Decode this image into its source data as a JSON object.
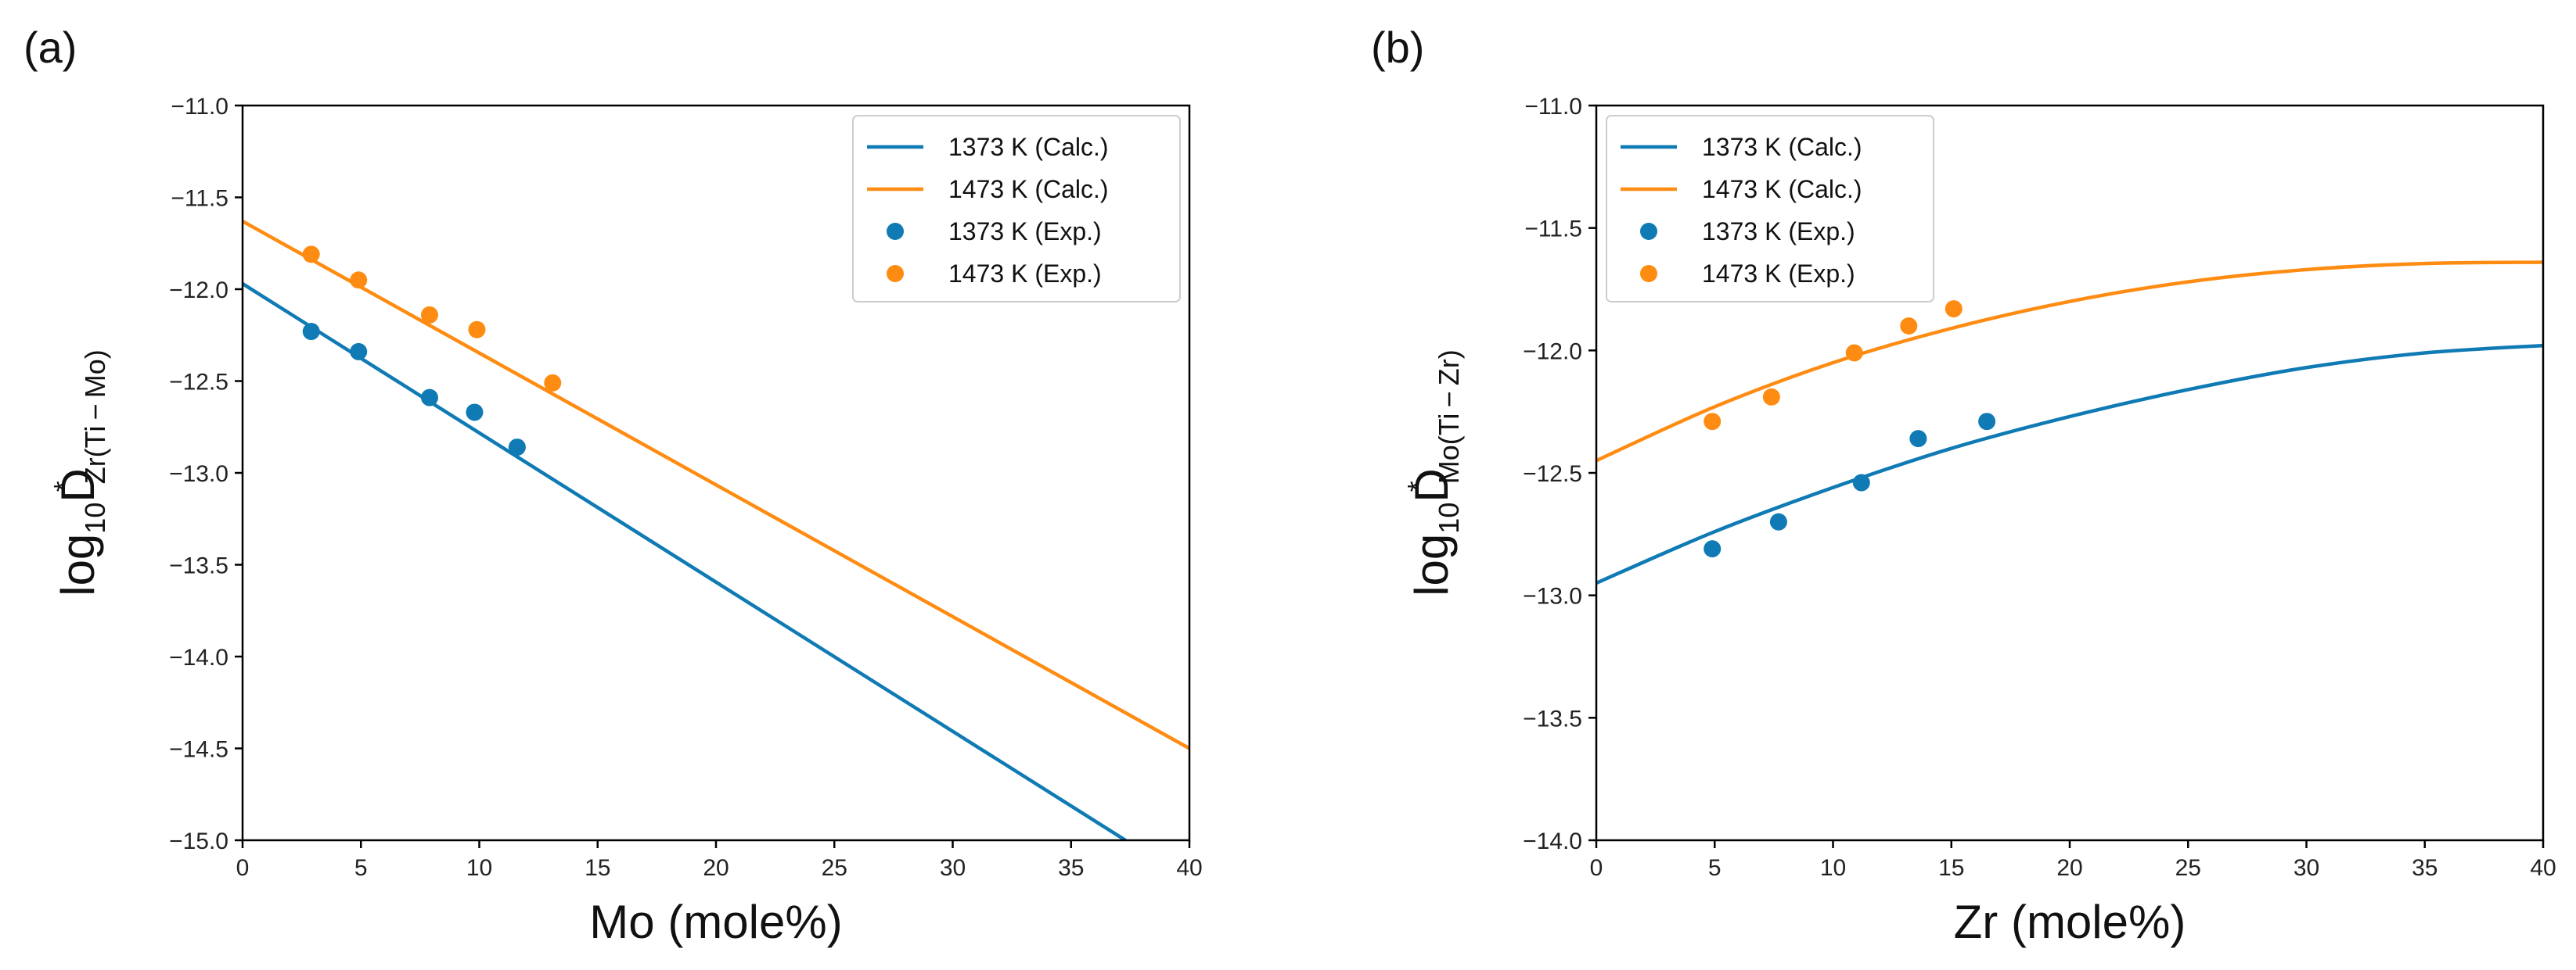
{
  "colors": {
    "calc1373": "#0f7ab4",
    "calc1473": "#ff8c12",
    "axis": "#000000"
  },
  "chart_data": [
    {
      "type": "line",
      "panel_label": "(a)",
      "xlabel": "Mo (mole%)",
      "ylabel_main": "log",
      "ylabel_sub1": "10",
      "ylabel_D": "D",
      "ylabel_star": "*",
      "ylabel_sub2": "Zr(Ti − Mo)",
      "xlim": [
        0,
        40
      ],
      "ylim": [
        -15.0,
        -11.0
      ],
      "xticks": [
        "0",
        "5",
        "10",
        "15",
        "20",
        "25",
        "30",
        "35",
        "40"
      ],
      "yticks": [
        "−15.0",
        "−14.5",
        "−14.0",
        "−13.5",
        "−13.0",
        "−12.5",
        "−12.0",
        "−11.5",
        "−11.0"
      ],
      "legend_position": "top-right",
      "series": [
        {
          "name": "1373 K (Calc.)",
          "kind": "line",
          "color": "#0f7ab4",
          "x": [
            0,
            37.3
          ],
          "y": [
            -11.97,
            -15.0
          ]
        },
        {
          "name": "1473 K (Calc.)",
          "kind": "line",
          "color": "#ff8c12",
          "x": [
            0,
            40
          ],
          "y": [
            -11.63,
            -14.5
          ]
        },
        {
          "name": "1373 K (Exp.)",
          "kind": "scatter",
          "color": "#0f7ab4",
          "x": [
            2.9,
            4.9,
            7.9,
            9.8,
            11.6
          ],
          "y": [
            -12.23,
            -12.34,
            -12.59,
            -12.67,
            -12.86
          ]
        },
        {
          "name": "1473 K (Exp.)",
          "kind": "scatter",
          "color": "#ff8c12",
          "x": [
            2.9,
            4.9,
            7.9,
            9.9,
            13.1
          ],
          "y": [
            -11.81,
            -11.95,
            -12.14,
            -12.22,
            -12.51
          ]
        }
      ]
    },
    {
      "type": "line",
      "panel_label": "(b)",
      "xlabel": "Zr (mole%)",
      "ylabel_main": "log",
      "ylabel_sub1": "10",
      "ylabel_D": "D",
      "ylabel_star": "*",
      "ylabel_sub2": "Mo(Ti − Zr)",
      "xlim": [
        0,
        40
      ],
      "ylim": [
        -14.0,
        -11.0
      ],
      "xticks": [
        "0",
        "5",
        "10",
        "15",
        "20",
        "25",
        "30",
        "35",
        "40"
      ],
      "yticks": [
        "−14.0",
        "−13.5",
        "−13.0",
        "−12.5",
        "−12.0",
        "−11.5",
        "−11.0"
      ],
      "legend_position": "top-left",
      "series": [
        {
          "name": "1373 K (Calc.)",
          "kind": "line",
          "color": "#0f7ab4",
          "x": [
            0,
            5,
            10,
            15,
            20,
            25,
            30,
            35,
            40
          ],
          "y": [
            -12.95,
            -12.74,
            -12.56,
            -12.4,
            -12.27,
            -12.16,
            -12.07,
            -12.01,
            -11.98
          ]
        },
        {
          "name": "1473 K (Calc.)",
          "kind": "line",
          "color": "#ff8c12",
          "x": [
            0,
            5,
            10,
            15,
            20,
            25,
            30,
            35,
            40
          ],
          "y": [
            -12.45,
            -12.23,
            -12.05,
            -11.91,
            -11.8,
            -11.72,
            -11.67,
            -11.645,
            -11.64
          ]
        },
        {
          "name": "1373 K (Exp.)",
          "kind": "scatter",
          "color": "#0f7ab4",
          "x": [
            4.9,
            7.7,
            11.2,
            13.6,
            16.5
          ],
          "y": [
            -12.81,
            -12.7,
            -12.54,
            -12.36,
            -12.29
          ]
        },
        {
          "name": "1473 K (Exp.)",
          "kind": "scatter",
          "color": "#ff8c12",
          "x": [
            4.9,
            7.4,
            10.9,
            13.2,
            15.1
          ],
          "y": [
            -12.29,
            -12.19,
            -12.01,
            -11.9,
            -11.83
          ]
        }
      ]
    }
  ]
}
